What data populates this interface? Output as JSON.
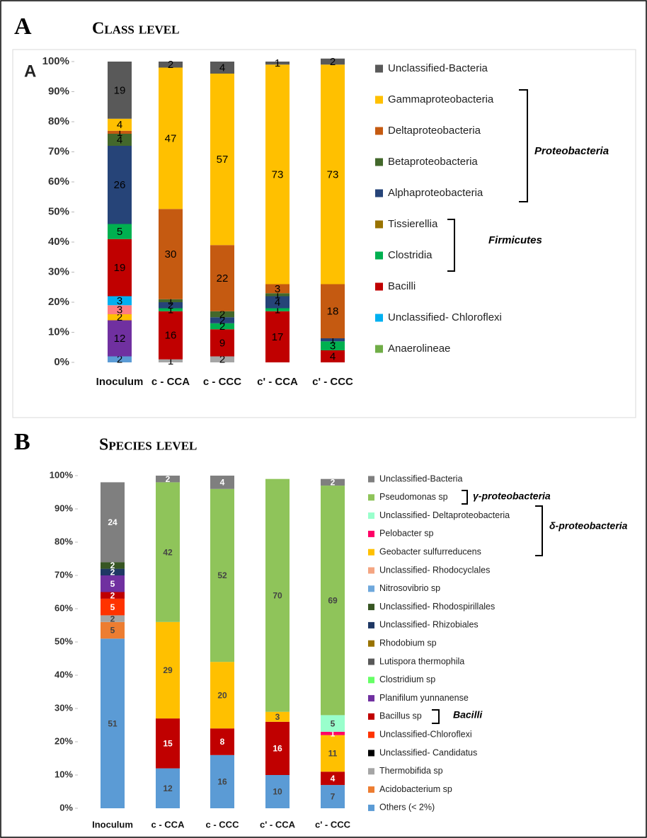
{
  "chart_data": [
    {
      "type": "bar",
      "stacked": true,
      "panel_label": "A",
      "title": "Class level",
      "inner_label": "A",
      "annotations": [
        "Proteobacteria",
        "Firmicutes"
      ],
      "categories": [
        "Inoculum",
        "c - CCA",
        "c - CCC",
        "c' - CCA",
        "c' - CCC"
      ],
      "ylim": [
        0,
        100
      ],
      "yticks": [
        {
          "value": 0,
          "label": "0%"
        },
        {
          "value": 10,
          "label": "10%"
        },
        {
          "value": 20,
          "label": "20%"
        },
        {
          "value": 30,
          "label": "30%"
        },
        {
          "value": 40,
          "label": "40%"
        },
        {
          "value": 50,
          "label": "50%"
        },
        {
          "value": 60,
          "label": "60%"
        },
        {
          "value": 70,
          "label": "70%"
        },
        {
          "value": 80,
          "label": "80%"
        },
        {
          "value": 90,
          "label": "90%"
        },
        {
          "value": 100,
          "label": "100%"
        }
      ],
      "series": [
        {
          "name": null,
          "color": "#5b9bd5",
          "values": [
            2,
            0,
            0,
            0,
            0
          ]
        },
        {
          "name": null,
          "color": "#a5a5a5",
          "values": [
            0,
            1,
            2,
            0,
            0
          ]
        },
        {
          "name": null,
          "color": "#7030a0",
          "values": [
            12,
            0,
            0,
            0,
            0
          ]
        },
        {
          "name": null,
          "color": "#ffc000",
          "values": [
            2,
            0,
            0,
            0,
            0
          ]
        },
        {
          "name": null,
          "color": "#ff7c80",
          "values": [
            3,
            0,
            0,
            0,
            0
          ]
        },
        {
          "name": "Anaerolineae",
          "color": "#70ad47",
          "values": [
            0,
            0,
            0,
            0,
            0
          ]
        },
        {
          "name": "Unclassified- Chloroflexi",
          "color": "#00b0f0",
          "values": [
            3,
            0,
            0,
            0,
            0
          ]
        },
        {
          "name": "Bacilli",
          "color": "#c00000",
          "values": [
            19,
            16,
            9,
            17,
            4
          ]
        },
        {
          "name": "Clostridia",
          "color": "#00b050",
          "values": [
            5,
            1,
            2,
            1,
            3
          ]
        },
        {
          "name": "Tissierellia",
          "color": "#997300",
          "values": [
            0,
            0,
            0,
            0,
            0
          ]
        },
        {
          "name": "Alphaproteobacteria",
          "color": "#264478",
          "values": [
            26,
            2,
            2,
            4,
            1
          ]
        },
        {
          "name": "Betaproteobacteria",
          "color": "#43682b",
          "values": [
            4,
            1,
            2,
            1,
            0
          ]
        },
        {
          "name": "Deltaproteobacteria",
          "color": "#c55a11",
          "values": [
            1,
            30,
            22,
            3,
            18
          ]
        },
        {
          "name": "Gammaproteobacteria",
          "color": "#ffc000",
          "values": [
            4,
            47,
            57,
            73,
            73
          ]
        },
        {
          "name": "Unclassified-Bacteria",
          "color": "#595959",
          "values": [
            19,
            2,
            4,
            1,
            2
          ]
        }
      ]
    },
    {
      "type": "bar",
      "stacked": true,
      "panel_label": "B",
      "title": "Species level",
      "annotations": [
        "γ-proteobacteria",
        "δ-proteobacteria",
        "Bacilli"
      ],
      "categories": [
        "Inoculum",
        "c - CCA",
        "c - CCC",
        "c' - CCA",
        "c' - CCC"
      ],
      "ylim": [
        0,
        100
      ],
      "yticks": [
        {
          "value": 0,
          "label": "0%"
        },
        {
          "value": 10,
          "label": "10%"
        },
        {
          "value": 20,
          "label": "20%"
        },
        {
          "value": 30,
          "label": "30%"
        },
        {
          "value": 40,
          "label": "40%"
        },
        {
          "value": 50,
          "label": "50%"
        },
        {
          "value": 60,
          "label": "60%"
        },
        {
          "value": 70,
          "label": "70%"
        },
        {
          "value": 80,
          "label": "80%"
        },
        {
          "value": 90,
          "label": "90%"
        },
        {
          "value": 100,
          "label": "100%"
        }
      ],
      "series": [
        {
          "name": "Others (< 2%)",
          "color": "#5b9bd5",
          "values": [
            51,
            12,
            16,
            10,
            7
          ]
        },
        {
          "name": "Acidobacterium sp",
          "color": "#ed7d31",
          "values": [
            5,
            0,
            0,
            0,
            0
          ]
        },
        {
          "name": "Thermobifida sp",
          "color": "#a5a5a5",
          "values": [
            2,
            0,
            0,
            0,
            0
          ]
        },
        {
          "name": "Unclassified- Candidatus",
          "color": "#000000",
          "values": [
            0,
            0,
            0,
            0,
            0
          ]
        },
        {
          "name": "Unclassified-Chloroflexi",
          "color": "#ff3300",
          "values": [
            5,
            0,
            0,
            0,
            0
          ]
        },
        {
          "name": "Bacillus sp",
          "color": "#c00000",
          "values": [
            2,
            15,
            8,
            16,
            4
          ]
        },
        {
          "name": "Planifilum yunnanense",
          "color": "#7030a0",
          "values": [
            5,
            0,
            0,
            0,
            0
          ]
        },
        {
          "name": "Clostridium sp",
          "color": "#66ff66",
          "values": [
            0,
            0,
            0,
            0,
            0
          ]
        },
        {
          "name": "Lutispora thermophila",
          "color": "#595959",
          "values": [
            0,
            0,
            0,
            0,
            0
          ]
        },
        {
          "name": "Rhodobium sp",
          "color": "#997300",
          "values": [
            0,
            0,
            0,
            0,
            0
          ]
        },
        {
          "name": "Unclassified- Rhizobiales",
          "color": "#1f3864",
          "values": [
            2,
            0,
            0,
            0,
            0
          ]
        },
        {
          "name": "Unclassified- Rhodospirillales",
          "color": "#375623",
          "values": [
            2,
            0,
            0,
            0,
            0
          ]
        },
        {
          "name": "Nitrosovibrio sp",
          "color": "#6fa8dc",
          "values": [
            0,
            0,
            0,
            0,
            0
          ]
        },
        {
          "name": "Unclassified- Rhodocyclales",
          "color": "#f4a582",
          "values": [
            0,
            0,
            0,
            0,
            0
          ]
        },
        {
          "name": "Geobacter sulfurreducens",
          "color": "#ffc000",
          "values": [
            0,
            29,
            20,
            3,
            11
          ]
        },
        {
          "name": "Pelobacter sp",
          "color": "#ff0066",
          "values": [
            0,
            0,
            0,
            0,
            1
          ]
        },
        {
          "name": "Unclassified- Deltaproteobacteria",
          "color": "#99ffcc",
          "values": [
            0,
            0,
            0,
            0,
            5
          ]
        },
        {
          "name": "Pseudomonas sp",
          "color": "#8fc45a",
          "values": [
            0,
            42,
            52,
            70,
            69
          ]
        },
        {
          "name": "Unclassified-Bacteria",
          "color": "#7f7f7f",
          "values": [
            24,
            2,
            4,
            0,
            2
          ]
        }
      ]
    }
  ]
}
